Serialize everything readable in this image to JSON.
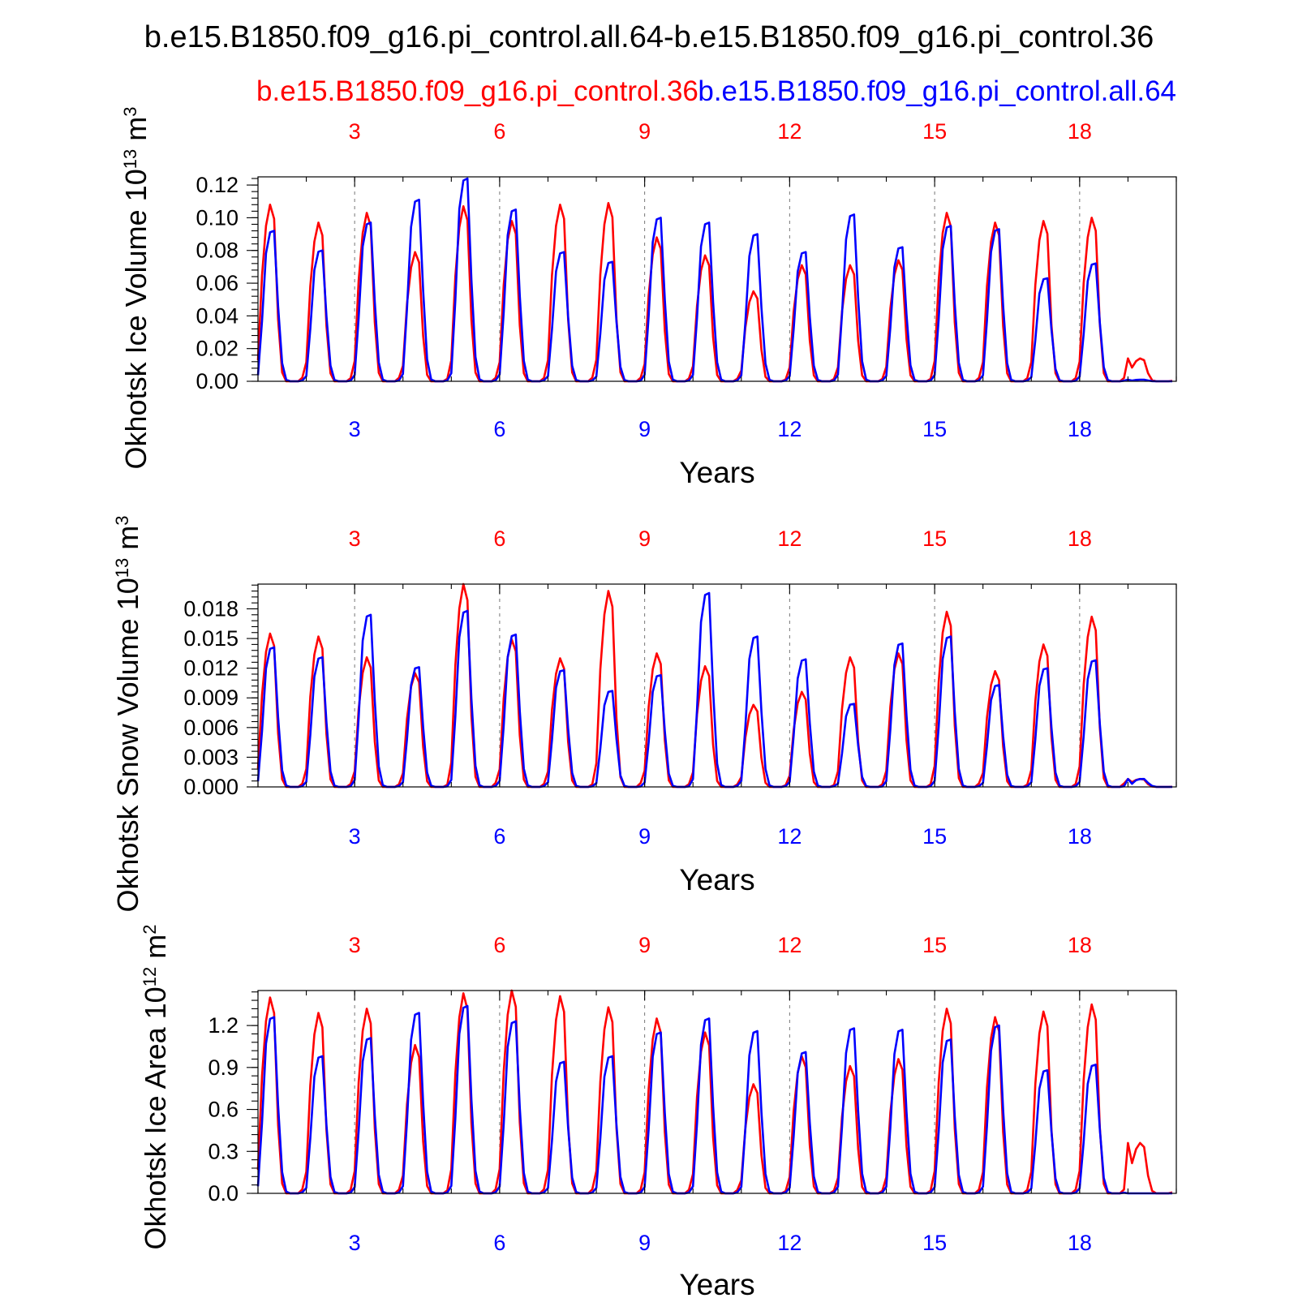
{
  "figure": {
    "title": "b.e15.B1850.f09_g16.pi_control.all.64-b.e15.B1850.f09_g16.pi_control.36",
    "legend_red": "b.e15.B1850.f09_g16.pi_control.36",
    "legend_blue": "b.e15.B1850.f09_g16.pi_control.all.64",
    "red_color": "#ff0000",
    "blue_color": "#0000ff"
  },
  "chart_data": [
    {
      "type": "line",
      "ylabel": "Okhotsk Ice Volume 10^13 m^3",
      "xlabel": "Years",
      "xlim": [
        1,
        20
      ],
      "xticks": [
        "3",
        "6",
        "9",
        "12",
        "15",
        "18"
      ],
      "ylim": [
        0,
        0.125
      ],
      "yticks": [
        "0.00",
        "0.02",
        "0.04",
        "0.06",
        "0.08",
        "0.10",
        "0.12"
      ],
      "ytick_values": [
        0,
        0.02,
        0.04,
        0.06,
        0.08,
        0.1,
        0.12
      ],
      "series": [
        {
          "name": "b.e15.B1850.f09_g16.pi_control.36",
          "color": "#ff0000",
          "annual_peaks": [
            0.108,
            0.097,
            0.103,
            0.079,
            0.107,
            0.098,
            0.108,
            0.109,
            0.088,
            0.077,
            0.055,
            0.071,
            0.071,
            0.074,
            0.103,
            0.097,
            0.098,
            0.1,
            0.014
          ]
        },
        {
          "name": "b.e15.B1850.f09_g16.pi_control.all.64",
          "color": "#0000ff",
          "annual_peaks": [
            0.092,
            0.08,
            0.097,
            0.111,
            0.124,
            0.105,
            0.079,
            0.073,
            0.1,
            0.097,
            0.09,
            0.079,
            0.102,
            0.082,
            0.095,
            0.093,
            0.063,
            0.072,
            0.001
          ]
        }
      ]
    },
    {
      "type": "line",
      "ylabel": "Okhotsk Snow Volume 10^13 m^3",
      "xlabel": "Years",
      "xlim": [
        1,
        20
      ],
      "xticks": [
        "3",
        "6",
        "9",
        "12",
        "15",
        "18"
      ],
      "ylim": [
        0,
        0.0205
      ],
      "yticks": [
        "0.000",
        "0.003",
        "0.006",
        "0.009",
        "0.012",
        "0.015",
        "0.018"
      ],
      "ytick_values": [
        0,
        0.003,
        0.006,
        0.009,
        0.012,
        0.015,
        0.018
      ],
      "series": [
        {
          "name": "b.e15.B1850.f09_g16.pi_control.36",
          "color": "#ff0000",
          "annual_peaks": [
            0.0155,
            0.0152,
            0.0131,
            0.0115,
            0.0205,
            0.0149,
            0.013,
            0.0198,
            0.0135,
            0.0122,
            0.0083,
            0.0096,
            0.0131,
            0.0135,
            0.0177,
            0.0117,
            0.0144,
            0.0172,
            0.0008
          ]
        },
        {
          "name": "b.e15.B1850.f09_g16.pi_control.all.64",
          "color": "#0000ff",
          "annual_peaks": [
            0.0141,
            0.0131,
            0.0174,
            0.0121,
            0.0178,
            0.0154,
            0.0118,
            0.0097,
            0.0113,
            0.0196,
            0.0152,
            0.0129,
            0.0084,
            0.0145,
            0.0152,
            0.0103,
            0.012,
            0.0128,
            0.0008
          ]
        }
      ]
    },
    {
      "type": "line",
      "ylabel": "Okhotsk Ice Area 10^12 m^2",
      "xlabel": "Years",
      "xlim": [
        1,
        20
      ],
      "xticks": [
        "3",
        "6",
        "9",
        "12",
        "15",
        "18"
      ],
      "ylim": [
        0,
        1.45
      ],
      "yticks": [
        "0.0",
        "0.3",
        "0.6",
        "0.9",
        "1.2"
      ],
      "ytick_values": [
        0,
        0.3,
        0.6,
        0.9,
        1.2
      ],
      "series": [
        {
          "name": "b.e15.B1850.f09_g16.pi_control.36",
          "color": "#ff0000",
          "annual_peaks": [
            1.4,
            1.29,
            1.32,
            1.06,
            1.43,
            1.45,
            1.41,
            1.33,
            1.25,
            1.15,
            0.78,
            0.98,
            0.91,
            0.96,
            1.32,
            1.26,
            1.3,
            1.35,
            0.36
          ]
        },
        {
          "name": "b.e15.B1850.f09_g16.pi_control.all.64",
          "color": "#0000ff",
          "annual_peaks": [
            1.26,
            0.98,
            1.11,
            1.29,
            1.34,
            1.23,
            0.94,
            0.98,
            1.15,
            1.25,
            1.16,
            1.01,
            1.18,
            1.17,
            1.1,
            1.2,
            0.88,
            0.92,
            0.0
          ]
        }
      ]
    }
  ]
}
